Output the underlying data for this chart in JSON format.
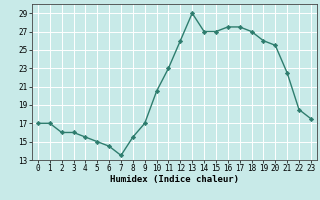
{
  "x": [
    0,
    1,
    2,
    3,
    4,
    5,
    6,
    7,
    8,
    9,
    10,
    11,
    12,
    13,
    14,
    15,
    16,
    17,
    18,
    19,
    20,
    21,
    22,
    23
  ],
  "y": [
    17,
    17,
    16,
    16,
    15.5,
    15,
    14.5,
    13.5,
    15.5,
    17,
    20.5,
    23,
    26,
    29,
    27,
    27,
    27.5,
    27.5,
    27,
    26,
    25.5,
    22.5,
    18.5,
    17.5
  ],
  "line_color": "#2e7d6e",
  "marker": "D",
  "marker_size": 2.2,
  "bg_color": "#c8eae8",
  "grid_color": "#ffffff",
  "xlabel": "Humidex (Indice chaleur)",
  "ylim": [
    13,
    30
  ],
  "yticks": [
    13,
    15,
    17,
    19,
    21,
    23,
    25,
    27,
    29
  ],
  "xticks": [
    0,
    1,
    2,
    3,
    4,
    5,
    6,
    7,
    8,
    9,
    10,
    11,
    12,
    13,
    14,
    15,
    16,
    17,
    18,
    19,
    20,
    21,
    22,
    23
  ],
  "xlabel_fontsize": 6.5,
  "tick_fontsize": 5.5,
  "line_width": 1.0
}
